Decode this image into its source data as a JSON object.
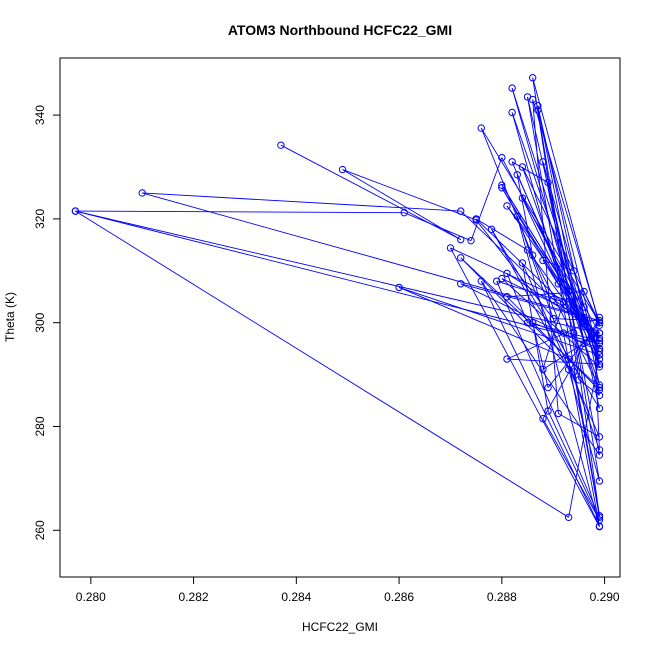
{
  "chart_data": {
    "type": "line",
    "title": "ATOM3 Northbound HCFC22_GMI",
    "xlabel": "HCFC22_GMI",
    "ylabel": "Theta (K)",
    "xlim": [
      0.2794,
      0.2903
    ],
    "ylim": [
      251,
      351
    ],
    "xticks": [
      0.28,
      0.282,
      0.284,
      0.286,
      0.288,
      0.29
    ],
    "xtick_labels": [
      "0.280",
      "0.282",
      "0.284",
      "0.286",
      "0.288",
      "0.290"
    ],
    "yticks": [
      260,
      280,
      300,
      320,
      340
    ],
    "ytick_labels": [
      "260",
      "280",
      "300",
      "320",
      "340"
    ],
    "grid": false,
    "legend": "none",
    "series_color": "#0000ff",
    "marker": "open-circle",
    "points": [
      [
        0.2837,
        334.2
      ],
      [
        0.2872,
        316.0
      ],
      [
        0.2849,
        329.5
      ],
      [
        0.2875,
        319.8
      ],
      [
        0.289,
        300.8
      ],
      [
        0.2899,
        300.4
      ],
      [
        0.281,
        325.0
      ],
      [
        0.2872,
        321.5
      ],
      [
        0.289,
        304.5
      ],
      [
        0.2899,
        298.0
      ],
      [
        0.2797,
        321.5
      ],
      [
        0.2861,
        321.2
      ],
      [
        0.2874,
        315.8
      ],
      [
        0.288,
        331.8
      ],
      [
        0.2899,
        296.0
      ],
      [
        0.2797,
        321.5
      ],
      [
        0.2893,
        262.5
      ],
      [
        0.2899,
        293.8
      ],
      [
        0.286,
        306.8
      ],
      [
        0.2893,
        293.0
      ],
      [
        0.2899,
        287.0
      ],
      [
        0.2881,
        305.0
      ],
      [
        0.2896,
        306.0
      ],
      [
        0.2899,
        299.5
      ],
      [
        0.2886,
        347.2
      ],
      [
        0.2895,
        289.0
      ],
      [
        0.2899,
        286.0
      ],
      [
        0.2882,
        345.2
      ],
      [
        0.2899,
        292.0
      ],
      [
        0.2882,
        340.5
      ],
      [
        0.2894,
        298.0
      ],
      [
        0.2899,
        262.8
      ],
      [
        0.2885,
        343.5
      ],
      [
        0.2896,
        296.0
      ],
      [
        0.2887,
        341.8
      ],
      [
        0.2899,
        288.0
      ],
      [
        0.2884,
        330.0
      ],
      [
        0.2899,
        300.0
      ],
      [
        0.2876,
        337.5
      ],
      [
        0.2892,
        298.0
      ],
      [
        0.2899,
        260.8
      ],
      [
        0.2876,
        308.0
      ],
      [
        0.2899,
        274.5
      ],
      [
        0.2888,
        331.0
      ],
      [
        0.2896,
        303.0
      ],
      [
        0.2881,
        322.5
      ],
      [
        0.2898,
        298.0
      ],
      [
        0.2899,
        275.5
      ],
      [
        0.2883,
        320.5
      ],
      [
        0.2899,
        260.7
      ],
      [
        0.287,
        314.4
      ],
      [
        0.2893,
        304.0
      ],
      [
        0.2899,
        294.5
      ],
      [
        0.2872,
        307.5
      ],
      [
        0.2896,
        301.0
      ],
      [
        0.288,
        308.5
      ],
      [
        0.2899,
        291.5
      ],
      [
        0.2882,
        331.0
      ],
      [
        0.2889,
        327.0
      ],
      [
        0.2899,
        283.5
      ],
      [
        0.2878,
        318.0
      ],
      [
        0.2893,
        291.0
      ],
      [
        0.2899,
        269.5
      ],
      [
        0.2887,
        341.0
      ],
      [
        0.2898,
        297.0
      ],
      [
        0.288,
        326.0
      ],
      [
        0.2891,
        307.5
      ],
      [
        0.2899,
        297.0
      ],
      [
        0.2875,
        320.0
      ],
      [
        0.2885,
        314.0
      ],
      [
        0.2899,
        295.0
      ],
      [
        0.2888,
        312.0
      ],
      [
        0.2894,
        310.0
      ],
      [
        0.2899,
        293.0
      ],
      [
        0.2883,
        328.5
      ],
      [
        0.2886,
        313.0
      ],
      [
        0.2899,
        287.5
      ],
      [
        0.2872,
        312.5
      ],
      [
        0.2894,
        290.5
      ],
      [
        0.2899,
        262.5
      ],
      [
        0.2879,
        308.0
      ],
      [
        0.2892,
        304.0
      ],
      [
        0.2888,
        291.0
      ],
      [
        0.2899,
        298.0
      ],
      [
        0.2881,
        309.5
      ],
      [
        0.2885,
        300.0
      ],
      [
        0.2899,
        296.5
      ],
      [
        0.288,
        326.5
      ],
      [
        0.2893,
        306.0
      ],
      [
        0.2899,
        295.0
      ],
      [
        0.2886,
        300.0
      ],
      [
        0.2889,
        287.5
      ],
      [
        0.2899,
        300.0
      ],
      [
        0.2886,
        343.0
      ],
      [
        0.2891,
        282.5
      ],
      [
        0.2899,
        278.0
      ],
      [
        0.2884,
        311.5
      ],
      [
        0.2889,
        283.0
      ],
      [
        0.2899,
        262.0
      ],
      [
        0.2888,
        281.5
      ],
      [
        0.2899,
        301.0
      ],
      [
        0.2881,
        293.0
      ],
      [
        0.2899,
        292.0
      ],
      [
        0.2884,
        324.0
      ],
      [
        0.2899,
        298.0
      ]
    ]
  }
}
